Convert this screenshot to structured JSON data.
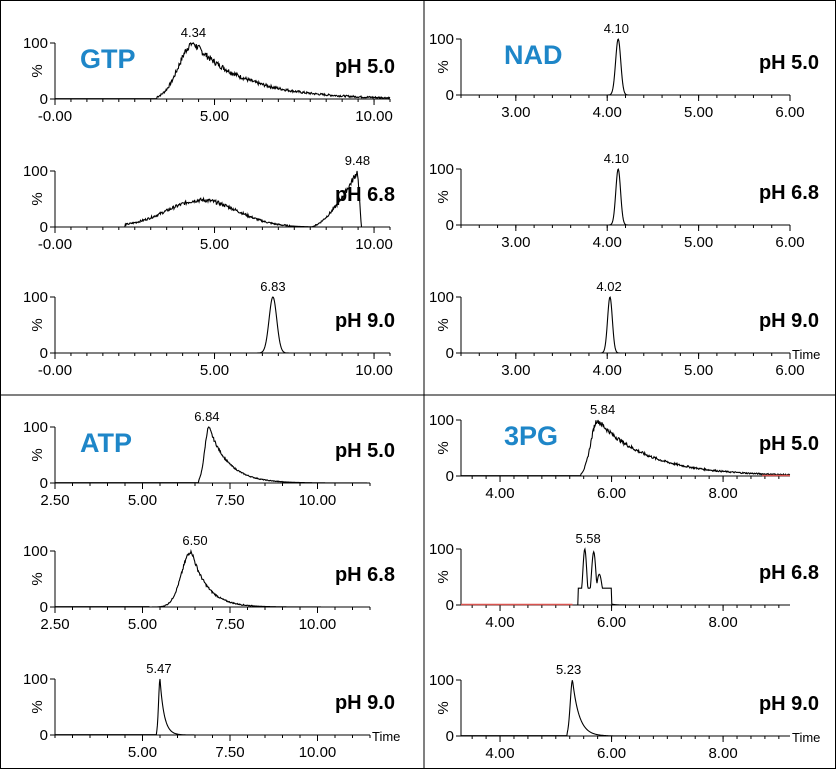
{
  "figure": {
    "y_axis_label": "%",
    "y_tick_labels": [
      "100",
      "0"
    ],
    "time_label": "Time",
    "compound_color": "#1e86c8",
    "trace_color": "#000000",
    "baseline_red": "#d9534f"
  },
  "chart_data": [
    {
      "panel": "GTP",
      "compound": "GTP",
      "ph": "pH 5.0",
      "type": "line",
      "xlim": [
        0,
        10.5
      ],
      "xticks": [
        "-0.00",
        "5.00",
        "10.00"
      ],
      "ylim": [
        0,
        100
      ],
      "peak_label": "4.34",
      "peak_x": 4.34,
      "time_label": false,
      "shape": {
        "kind": "tail",
        "peak": 4.34,
        "rise": 0.45,
        "decay": 1.6,
        "start": 3.2,
        "noise": 7
      }
    },
    {
      "panel": "GTP",
      "compound": "",
      "ph": "pH 6.8",
      "type": "line",
      "xlim": [
        0,
        10.5
      ],
      "xticks": [
        "-0.00",
        "5.00",
        "10.00"
      ],
      "ylim": [
        0,
        100
      ],
      "peak_label": "9.48",
      "peak_x": 9.48,
      "time_label": false,
      "shape": {
        "kind": "broad_cliff",
        "peak": 9.48,
        "noise": 6
      }
    },
    {
      "panel": "GTP",
      "compound": "",
      "ph": "pH 9.0",
      "type": "line",
      "xlim": [
        0,
        10.5
      ],
      "xticks": [
        "-0.00",
        "5.00",
        "10.00"
      ],
      "ylim": [
        0,
        100
      ],
      "peak_label": "6.83",
      "peak_x": 6.83,
      "time_label": false,
      "shape": {
        "kind": "gauss",
        "peak": 6.83,
        "sigma": 0.12
      }
    },
    {
      "panel": "NAD",
      "compound": "NAD",
      "ph": "pH 5.0",
      "type": "line",
      "xlim": [
        2.4,
        6.0
      ],
      "xticks": [
        "3.00",
        "4.00",
        "5.00",
        "6.00"
      ],
      "ylim": [
        0,
        100
      ],
      "peak_label": "4.10",
      "peak_x": 4.1,
      "time_label": false,
      "shape": {
        "kind": "gauss",
        "peak": 4.12,
        "sigma": 0.028
      }
    },
    {
      "panel": "NAD",
      "compound": "",
      "ph": "pH 6.8",
      "type": "line",
      "xlim": [
        2.4,
        6.0
      ],
      "xticks": [
        "3.00",
        "4.00",
        "5.00",
        "6.00"
      ],
      "ylim": [
        0,
        100
      ],
      "peak_label": "4.10",
      "peak_x": 4.1,
      "time_label": false,
      "shape": {
        "kind": "gauss",
        "peak": 4.12,
        "sigma": 0.026
      }
    },
    {
      "panel": "NAD",
      "compound": "",
      "ph": "pH 9.0",
      "type": "line",
      "xlim": [
        2.4,
        6.0
      ],
      "xticks": [
        "3.00",
        "4.00",
        "5.00",
        "6.00"
      ],
      "ylim": [
        0,
        100
      ],
      "peak_label": "4.02",
      "peak_x": 4.02,
      "time_label": true,
      "shape": {
        "kind": "gauss",
        "peak": 4.03,
        "sigma": 0.026
      }
    },
    {
      "panel": "ATP",
      "compound": "ATP",
      "ph": "pH 5.0",
      "type": "line",
      "xlim": [
        2.5,
        11.5
      ],
      "xticks": [
        "2.50",
        "5.00",
        "7.50",
        "10.00"
      ],
      "ylim": [
        0,
        100
      ],
      "peak_label": "6.84",
      "peak_x": 6.84,
      "time_label": false,
      "shape": {
        "kind": "tail",
        "peak": 6.9,
        "rise": 0.12,
        "decay": 0.55,
        "start": 6.6,
        "noise": 3
      }
    },
    {
      "panel": "ATP",
      "compound": "",
      "ph": "pH 6.8",
      "type": "line",
      "xlim": [
        2.5,
        11.5
      ],
      "xticks": [
        "2.50",
        "5.00",
        "7.50",
        "10.00"
      ],
      "ylim": [
        0,
        100
      ],
      "peak_label": "6.50",
      "peak_x": 6.5,
      "time_label": false,
      "shape": {
        "kind": "tail",
        "peak": 6.4,
        "rise": 0.28,
        "decay": 0.45,
        "start": 5.2,
        "noise": 4
      }
    },
    {
      "panel": "ATP",
      "compound": "",
      "ph": "pH 9.0",
      "type": "line",
      "xlim": [
        2.5,
        11.5
      ],
      "xticks": [
        "5.00",
        "7.50",
        "10.00"
      ],
      "ylim": [
        0,
        100
      ],
      "peak_label": "5.47",
      "peak_x": 5.47,
      "time_label": true,
      "shape": {
        "kind": "tail",
        "peak": 5.5,
        "rise": 0.04,
        "decay": 0.12,
        "start": 5.4,
        "noise": 0
      }
    },
    {
      "panel": "3PG",
      "compound": "3PG",
      "ph": "pH 5.0",
      "type": "line",
      "xlim": [
        3.3,
        9.2
      ],
      "xticks": [
        "4.00",
        "6.00",
        "8.00"
      ],
      "ylim": [
        0,
        100
      ],
      "peak_label": "5.84",
      "peak_x": 5.84,
      "time_label": false,
      "shape": {
        "kind": "tail",
        "peak": 5.75,
        "rise": 0.12,
        "decay": 0.9,
        "start": 5.45,
        "noise": 5
      }
    },
    {
      "panel": "3PG",
      "compound": "",
      "ph": "pH 6.8",
      "type": "line",
      "xlim": [
        3.3,
        9.2
      ],
      "xticks": [
        "4.00",
        "6.00",
        "8.00"
      ],
      "ylim": [
        0,
        100
      ],
      "peak_label": "5.58",
      "peak_x": 5.58,
      "time_label": false,
      "shape": {
        "kind": "doublet",
        "peak": 5.58,
        "noise": 0
      }
    },
    {
      "panel": "3PG",
      "compound": "",
      "ph": "pH 9.0",
      "type": "line",
      "xlim": [
        3.3,
        9.2
      ],
      "xticks": [
        "4.00",
        "6.00",
        "8.00"
      ],
      "ylim": [
        0,
        100
      ],
      "peak_label": "5.23",
      "peak_x": 5.23,
      "time_label": true,
      "shape": {
        "kind": "tail",
        "peak": 5.3,
        "rise": 0.04,
        "decay": 0.12,
        "start": 5.2,
        "noise": 0
      }
    }
  ]
}
